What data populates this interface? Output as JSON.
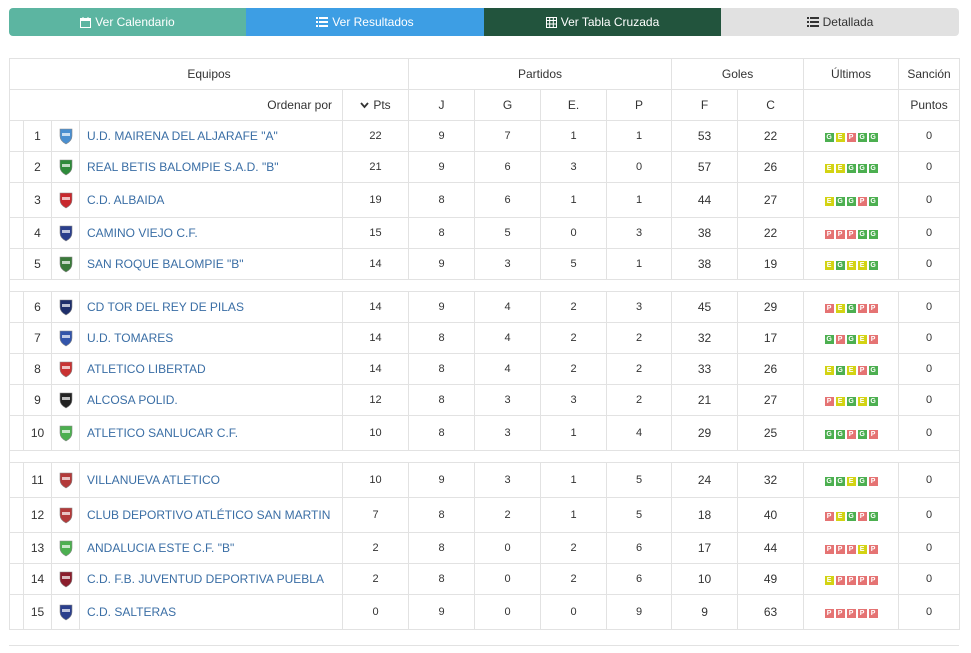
{
  "tabs": [
    {
      "label": "Ver Calendario",
      "icon": "calendar-icon"
    },
    {
      "label": "Ver Resultados",
      "icon": "list-icon"
    },
    {
      "label": "Ver Tabla Cruzada",
      "icon": "table-icon"
    },
    {
      "label": "Detallada",
      "icon": "list-detailed-icon"
    }
  ],
  "header": {
    "equipos": "Equipos",
    "partidos": "Partidos",
    "goles": "Goles",
    "ultimos": "Últimos",
    "sancion": "Sanción",
    "ordenar": "Ordenar por",
    "pts": "Pts",
    "j": "J",
    "g": "G",
    "e": "E.",
    "p": "P",
    "f": "F",
    "c": "C",
    "puntos": "Puntos"
  },
  "colors": {
    "G": "#4caf50",
    "E": "#d3d313",
    "P": "#e57373",
    "link": "#3a6ea5"
  },
  "groups": [
    {
      "rows": [
        {
          "pos": "1",
          "name": "U.D. MAIRENA DEL ALJARAFE \"A\"",
          "pts": "22",
          "j": "9",
          "g": "7",
          "e": "1",
          "p": "1",
          "f": "53",
          "c": "22",
          "form": [
            "G",
            "E",
            "P",
            "G",
            "G"
          ],
          "sancion": "0",
          "logo": "#4a8fd0"
        },
        {
          "pos": "2",
          "name": "REAL BETIS BALOMPIE S.A.D. \"B\"",
          "pts": "21",
          "j": "9",
          "g": "6",
          "e": "3",
          "p": "0",
          "f": "57",
          "c": "26",
          "form": [
            "E",
            "E",
            "G",
            "G",
            "G"
          ],
          "sancion": "0",
          "logo": "#2e8b3a"
        },
        {
          "pos": "3",
          "name": "C.D. ALBAIDA",
          "pts": "19",
          "j": "8",
          "g": "6",
          "e": "1",
          "p": "1",
          "f": "44",
          "c": "27",
          "form": [
            "E",
            "G",
            "G",
            "P",
            "G"
          ],
          "sancion": "0",
          "logo": "#c8282d"
        },
        {
          "pos": "4",
          "name": "CAMINO VIEJO C.F.",
          "pts": "15",
          "j": "8",
          "g": "5",
          "e": "0",
          "p": "3",
          "f": "38",
          "c": "22",
          "form": [
            "P",
            "P",
            "P",
            "G",
            "G"
          ],
          "sancion": "0",
          "logo": "#2b3f8c"
        },
        {
          "pos": "5",
          "name": "SAN ROQUE BALOMPIE \"B\"",
          "pts": "14",
          "j": "9",
          "g": "3",
          "e": "5",
          "p": "1",
          "f": "38",
          "c": "19",
          "form": [
            "E",
            "G",
            "E",
            "E",
            "G"
          ],
          "sancion": "0",
          "logo": "#3a7a3a"
        }
      ]
    },
    {
      "rows": [
        {
          "pos": "6",
          "name": "CD TOR DEL REY DE PILAS",
          "pts": "14",
          "j": "9",
          "g": "4",
          "e": "2",
          "p": "3",
          "f": "45",
          "c": "29",
          "form": [
            "P",
            "E",
            "G",
            "P",
            "P"
          ],
          "sancion": "0",
          "logo": "#1e2f6b"
        },
        {
          "pos": "7",
          "name": "U.D. TOMARES",
          "pts": "14",
          "j": "8",
          "g": "4",
          "e": "2",
          "p": "2",
          "f": "32",
          "c": "17",
          "form": [
            "G",
            "P",
            "G",
            "E",
            "P"
          ],
          "sancion": "0",
          "logo": "#3355aa"
        },
        {
          "pos": "8",
          "name": "ATLETICO LIBERTAD",
          "pts": "14",
          "j": "8",
          "g": "4",
          "e": "2",
          "p": "2",
          "f": "33",
          "c": "26",
          "form": [
            "E",
            "G",
            "E",
            "P",
            "G"
          ],
          "sancion": "0",
          "logo": "#c83232"
        },
        {
          "pos": "9",
          "name": "ALCOSA POLID.",
          "pts": "12",
          "j": "8",
          "g": "3",
          "e": "3",
          "p": "2",
          "f": "21",
          "c": "27",
          "form": [
            "P",
            "E",
            "G",
            "E",
            "G"
          ],
          "sancion": "0",
          "logo": "#222222"
        },
        {
          "pos": "10",
          "name": "ATLETICO SANLUCAR C.F.",
          "pts": "10",
          "j": "8",
          "g": "3",
          "e": "1",
          "p": "4",
          "f": "29",
          "c": "25",
          "form": [
            "G",
            "G",
            "P",
            "G",
            "P"
          ],
          "sancion": "0",
          "logo": "#4caf50"
        }
      ]
    },
    {
      "rows": [
        {
          "pos": "11",
          "name": "VILLANUEVA ATLETICO",
          "pts": "10",
          "j": "9",
          "g": "3",
          "e": "1",
          "p": "5",
          "f": "24",
          "c": "32",
          "form": [
            "G",
            "G",
            "E",
            "G",
            "P"
          ],
          "sancion": "0",
          "logo": "#b33a3a"
        },
        {
          "pos": "12",
          "name": "CLUB DEPORTIVO ATLÉTICO SAN MARTIN",
          "pts": "7",
          "j": "8",
          "g": "2",
          "e": "1",
          "p": "5",
          "f": "18",
          "c": "40",
          "form": [
            "P",
            "E",
            "G",
            "P",
            "G"
          ],
          "sancion": "0",
          "logo": "#b33a3a"
        },
        {
          "pos": "13",
          "name": "ANDALUCIA ESTE C.F. \"B\"",
          "pts": "2",
          "j": "8",
          "g": "0",
          "e": "2",
          "p": "6",
          "f": "17",
          "c": "44",
          "form": [
            "P",
            "P",
            "P",
            "E",
            "P"
          ],
          "sancion": "0",
          "logo": "#4caf50"
        },
        {
          "pos": "14",
          "name": "C.D. F.B. JUVENTUD DEPORTIVA PUEBLA",
          "pts": "2",
          "j": "8",
          "g": "0",
          "e": "2",
          "p": "6",
          "f": "10",
          "c": "49",
          "form": [
            "E",
            "P",
            "P",
            "P",
            "P"
          ],
          "sancion": "0",
          "logo": "#8b1e2d"
        },
        {
          "pos": "15",
          "name": "C.D. SALTERAS",
          "pts": "0",
          "j": "9",
          "g": "0",
          "e": "0",
          "p": "9",
          "f": "9",
          "c": "63",
          "form": [
            "P",
            "P",
            "P",
            "P",
            "P"
          ],
          "sancion": "0",
          "logo": "#2b3f8c"
        }
      ]
    }
  ]
}
